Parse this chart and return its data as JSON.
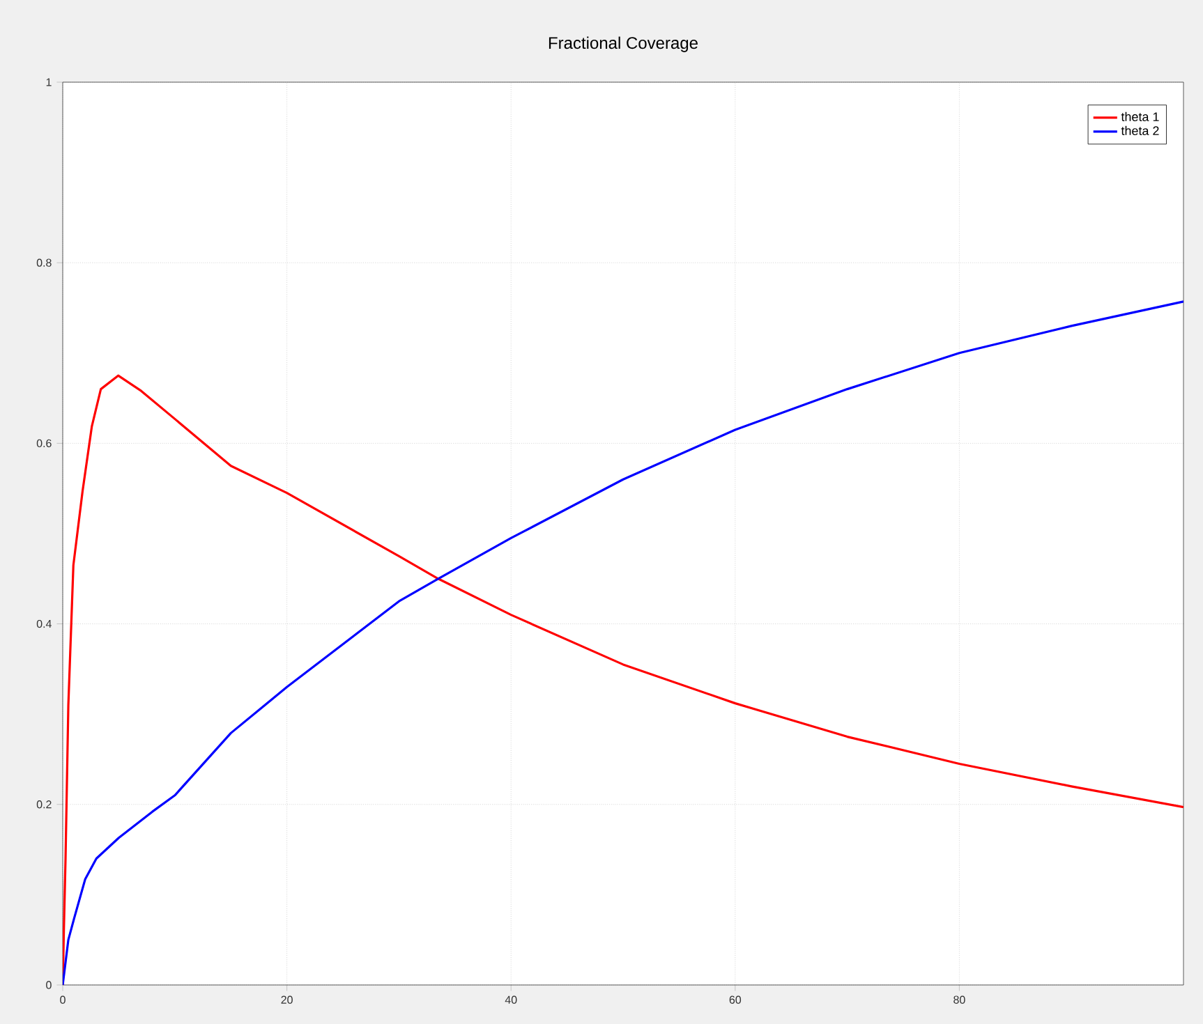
{
  "chart_data": {
    "type": "line",
    "title": "Fractional Coverage",
    "xlim": [
      0,
      100
    ],
    "xticks": [
      0,
      20,
      40,
      60,
      80
    ],
    "ylim": [
      0,
      1
    ],
    "yticks": [
      0,
      0.2,
      0.4,
      0.6,
      0.8,
      1
    ],
    "grid": true,
    "legend": "top right",
    "line_style": "solid",
    "series": [
      {
        "name": "theta 1",
        "color": "#ff0000",
        "x": [
          0,
          0.1,
          0.25,
          0.5,
          0.95,
          1.77,
          2.6,
          3.4,
          4.95,
          7,
          10,
          15,
          20,
          30,
          33.5,
          40,
          50,
          60,
          70,
          80,
          90,
          100
        ],
        "values": [
          0,
          0.06,
          0.14,
          0.31,
          0.465,
          0.547,
          0.619,
          0.66,
          0.675,
          0.658,
          0.627,
          0.575,
          0.545,
          0.475,
          0.45,
          0.41,
          0.355,
          0.312,
          0.275,
          0.245,
          0.22,
          0.197
        ]
      },
      {
        "name": "theta 2",
        "color": "#0000ff",
        "x": [
          0,
          0.5,
          1,
          2,
          3,
          5,
          8,
          10,
          15,
          20,
          30,
          33.5,
          40,
          50,
          60,
          70,
          80,
          90,
          100
        ],
        "values": [
          0,
          0.05,
          0.073,
          0.117,
          0.14,
          0.163,
          0.192,
          0.21,
          0.279,
          0.33,
          0.425,
          0.45,
          0.495,
          0.56,
          0.615,
          0.66,
          0.7,
          0.73,
          0.757
        ]
      }
    ]
  }
}
